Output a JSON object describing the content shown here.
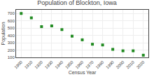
{
  "chart_data": {
    "type": "scatter",
    "title": "Population of Blockton, Iowa",
    "xlabel": "Census Year",
    "ylabel": "Population",
    "x": [
      1900,
      1910,
      1920,
      1930,
      1940,
      1950,
      1960,
      1970,
      1980,
      1990,
      2000,
      2010,
      2020
    ],
    "values": [
      700,
      640,
      520,
      530,
      480,
      390,
      340,
      280,
      270,
      210,
      190,
      190,
      130
    ],
    "color": "#228B22",
    "marker": "square",
    "xlim": [
      1895,
      2025
    ],
    "ylim": [
      100,
      750
    ],
    "xticks": [
      1900,
      1910,
      1920,
      1930,
      1940,
      1950,
      1960,
      1970,
      1980,
      1990,
      2000,
      2010,
      2020
    ],
    "yticks": [
      100,
      200,
      300,
      400,
      500,
      600,
      700
    ],
    "grid": true
  }
}
